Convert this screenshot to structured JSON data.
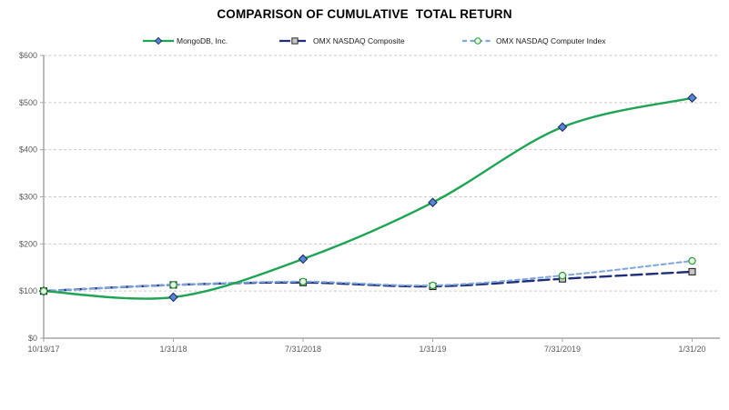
{
  "chart_data": {
    "type": "line",
    "title": "COMPARISON OF CUMULATIVE  TOTAL RETURN",
    "categories": [
      "10/19/17",
      "1/31/18",
      "7/31/2018",
      "1/31/19",
      "7/31/2019",
      "1/31/20"
    ],
    "series": [
      {
        "name": "MongoDB, Inc.",
        "values": [
          100,
          87,
          168,
          288,
          448,
          510
        ],
        "line_color": "#1FA355",
        "line_style": "solid",
        "marker": "diamond",
        "marker_fill": "#5B84D6",
        "marker_stroke": "#1F3864"
      },
      {
        "name": "OMX NASDAQ Composite",
        "values": [
          100,
          113,
          118,
          110,
          126,
          141
        ],
        "line_color": "#1F2D7A",
        "line_style": "long-dash",
        "marker": "square",
        "marker_fill": "#C6C6C6",
        "marker_stroke": "#262626"
      },
      {
        "name": "OMX NASDAQ Computer Index",
        "values": [
          100,
          113,
          120,
          112,
          133,
          164
        ],
        "line_color": "#7EA6DC",
        "line_style": "short-dash",
        "marker": "circle",
        "marker_fill": "#EAF3E3",
        "marker_stroke": "#2E9C41"
      }
    ],
    "ylim": [
      0,
      600
    ],
    "y_tick_step": 100,
    "y_tick_labels": [
      "$0",
      "$100",
      "$200",
      "$300",
      "$400",
      "$500",
      "$600"
    ],
    "grid": "horizontal-dashed",
    "legend_position": "top",
    "smoothed": true
  },
  "style": {
    "background": "#FFFFFF",
    "grid_color": "#C9C9C9",
    "axis_color": "#A6A6A6",
    "tick_label_color": "#595959",
    "title_color": "#000000",
    "legend_text_color": "#1A1A1A"
  }
}
